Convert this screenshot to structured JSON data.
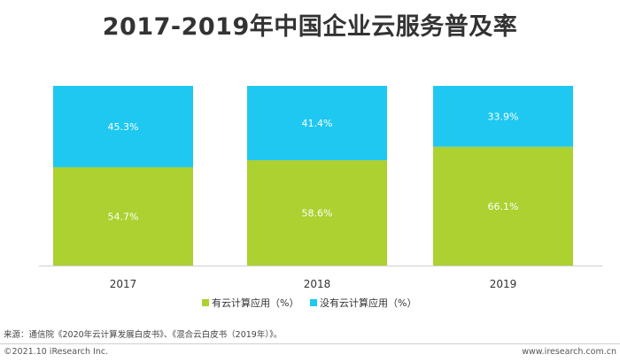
{
  "chart_data": {
    "type": "bar",
    "stacked": true,
    "percent_stacked": true,
    "title": "2017-2019年中国企业云服务普及率",
    "categories": [
      "2017",
      "2018",
      "2019"
    ],
    "series": [
      {
        "name": "有云计算应用（%）",
        "values": [
          54.7,
          58.6,
          66.1
        ],
        "labels": [
          "54.7%",
          "58.6%",
          "66.1%"
        ],
        "color": "#acd130"
      },
      {
        "name": "没有云计算应用（%）",
        "values": [
          45.3,
          41.4,
          33.9
        ],
        "labels": [
          "45.3%",
          "41.4%",
          "33.9%"
        ],
        "color": "#1fc8f0"
      }
    ],
    "ylim": [
      0,
      100
    ],
    "grid": false,
    "legend_position": "bottom"
  },
  "footer": {
    "source": "来源：通信院《2020年云计算发展白皮书》、《混合云白皮书（2019年）》。",
    "copyright": "©2021.10 iResearch Inc.",
    "website": "www.iresearch.com.cn"
  }
}
